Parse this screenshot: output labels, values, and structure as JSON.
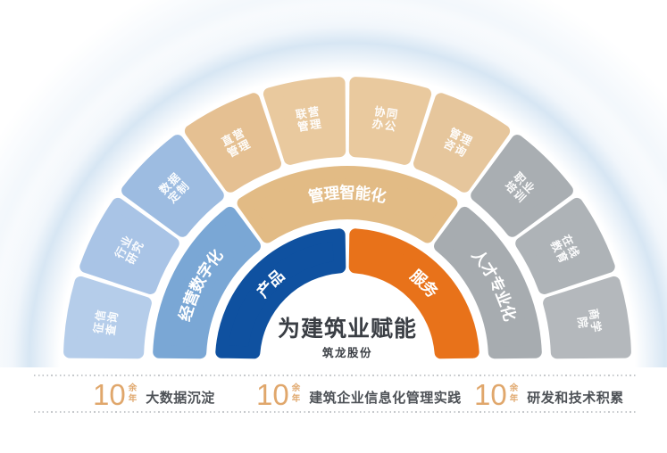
{
  "center": {
    "title": "为建筑业赋能",
    "subtitle": "筑龙股份"
  },
  "inner_ring": {
    "segments": [
      {
        "label": "产品",
        "color": "#0f51a0",
        "start": -90,
        "end": 0
      },
      {
        "label": "服务",
        "color": "#e8721a",
        "start": 0,
        "end": 90
      }
    ]
  },
  "middle_ring": {
    "segments": [
      {
        "label": "经营数字化",
        "color": "#7aa7d5",
        "start": -90,
        "end": -36
      },
      {
        "label": "管理智能化",
        "color": "#e2bb85",
        "start": -36,
        "end": 36
      },
      {
        "label": "人才专业化",
        "color": "#a7acb0",
        "start": 36,
        "end": 90
      }
    ]
  },
  "outer_ring": {
    "segments": [
      {
        "lines": [
          "征信",
          "查询"
        ],
        "color": "#b5cdea"
      },
      {
        "lines": [
          "行业",
          "研究"
        ],
        "color": "#a9c4e6"
      },
      {
        "lines": [
          "数据",
          "定制"
        ],
        "color": "#9dbce1"
      },
      {
        "lines": [
          "直营",
          "管理"
        ],
        "color": "#e5c092"
      },
      {
        "lines": [
          "联营",
          "管理"
        ],
        "color": "#e9c99e"
      },
      {
        "lines": [
          "协同",
          "办公"
        ],
        "color": "#e9c99e"
      },
      {
        "lines": [
          "管理",
          "咨询"
        ],
        "color": "#e6c69c"
      },
      {
        "lines": [
          "职业",
          "培训"
        ],
        "color": "#a9aeb2"
      },
      {
        "lines": [
          "在线",
          "教育"
        ],
        "color": "#aeb3b7"
      },
      {
        "lines": [
          "商学",
          "院"
        ],
        "color": "#b4b8bc"
      }
    ]
  },
  "stats": [
    {
      "value": "10",
      "unit_top": "余",
      "unit_bottom": "年",
      "label": "大数据沉淀"
    },
    {
      "value": "10",
      "unit_top": "余",
      "unit_bottom": "年",
      "label": "建筑企业信息化管理实践"
    },
    {
      "value": "10",
      "unit_top": "余",
      "unit_bottom": "年",
      "label": "研发和技术积累"
    }
  ],
  "colors": {
    "accent_blue": "#0f51a0",
    "accent_orange": "#e8721a",
    "light_blue": "#7aa7d5",
    "tan": "#e2bb85",
    "gray": "#a7acb0",
    "stat_number": "#e0a76c",
    "stat_label": "#4e5257",
    "title_text": "#3a3e44",
    "dotted_line": "#c6c9cc",
    "halo": "#d5e5f3",
    "segment_text": "#ffffff"
  }
}
